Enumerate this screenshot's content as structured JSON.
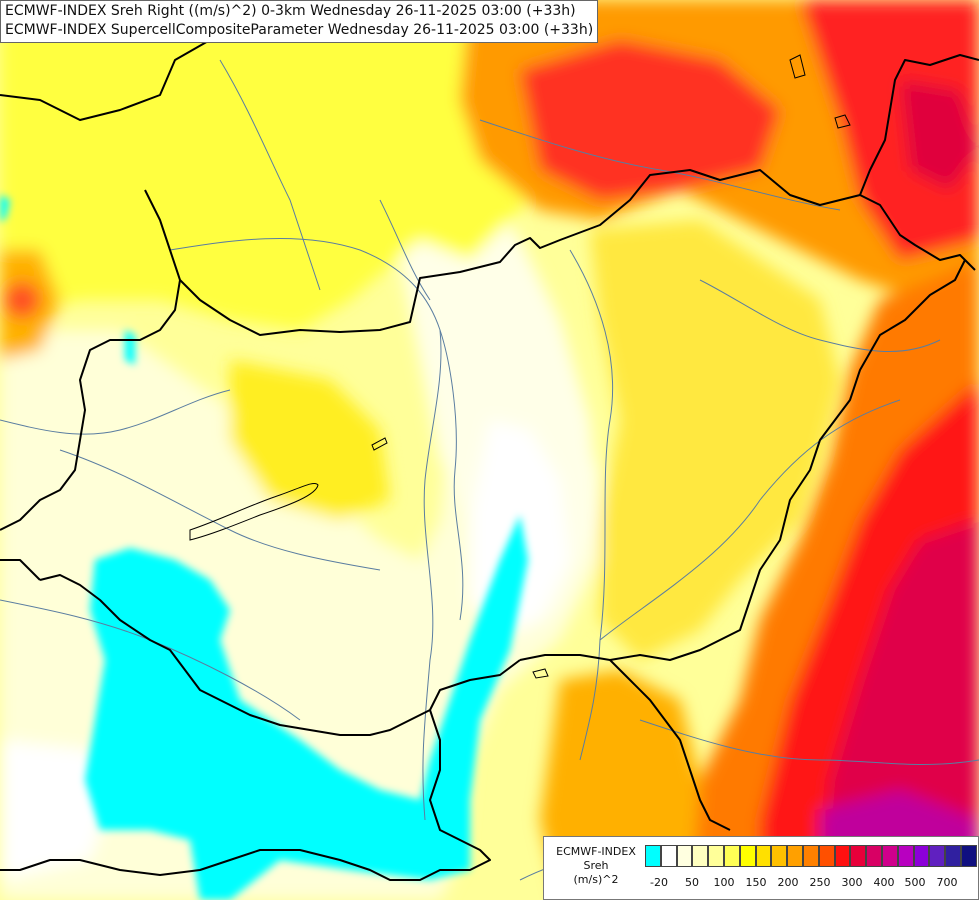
{
  "header": {
    "line1": "ECMWF-INDEX Sreh Right ((m/s)^2) 0-3km Wednesday 26-11-2025 03:00 (+33h)",
    "line2": "ECMWF-INDEX SupercellCompositeParameter Wednesday 26-11-2025 03:00 (+33h)"
  },
  "legend": {
    "line1": "ECMWF-INDEX",
    "line2": "Sreh",
    "line3": "(m/s)^2",
    "ticks": [
      "-20",
      "50",
      "100",
      "150",
      "200",
      "250",
      "300",
      "400",
      "500",
      "700"
    ],
    "colors": [
      "#00ffff",
      "#ffffff",
      "#ffffe0",
      "#ffffc0",
      "#ffff99",
      "#ffff55",
      "#ffff00",
      "#ffe000",
      "#ffc000",
      "#ffa000",
      "#ff8000",
      "#ff5000",
      "#ff1010",
      "#e8003a",
      "#d80064",
      "#d0008c",
      "#b800c0",
      "#8c00d8",
      "#6020c0",
      "#3020a0",
      "#101080"
    ]
  },
  "colors": {
    "cyan": "#00ffff",
    "yellow": "#ffff00",
    "orange": "#ff8000",
    "red": "#ff1010",
    "crimson": "#e8003a",
    "border": "#000000",
    "river": "#5a7da0"
  }
}
